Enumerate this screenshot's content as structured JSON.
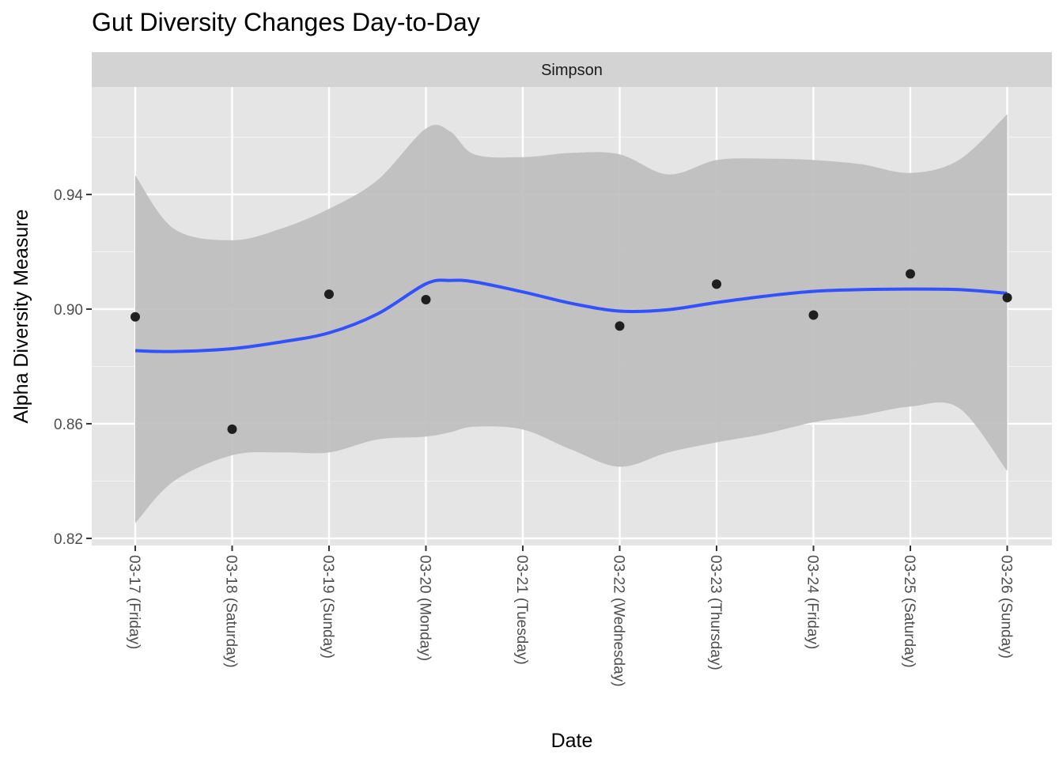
{
  "chart_data": {
    "type": "scatter",
    "title": "Gut Diversity Changes Day-to-Day",
    "facet_label": "Simpson",
    "xlabel": "Date",
    "ylabel": "Alpha Diversity Measure",
    "categories": [
      "03-17 (Friday)",
      "03-18 (Saturday)",
      "03-19 (Sunday)",
      "03-20 (Monday)",
      "03-21 (Tuesday)",
      "03-22 (Wednesday)",
      "03-23 (Thursday)",
      "03-24 (Friday)",
      "03-25 (Saturday)",
      "03-26 (Sunday)"
    ],
    "y_ticks": [
      "0.82",
      "0.86",
      "0.90",
      "0.94"
    ],
    "ylim": [
      0.8175,
      0.9775
    ],
    "grid": true,
    "colors": {
      "panel": "#e5e5e5",
      "strip": "#d3d3d3",
      "grid": "#ffffff",
      "points": "#1f1f1f",
      "smooth_line": "#3352ff",
      "confidence_band": "#bdbdbd"
    },
    "series": [
      {
        "kind": "points",
        "x": [
          "03-17 (Friday)",
          "03-18 (Saturday)",
          "03-19 (Sunday)",
          "03-20 (Monday)",
          "03-22 (Wednesday)",
          "03-23 (Thursday)",
          "03-24 (Friday)",
          "03-25 (Saturday)",
          "03-26 (Sunday)"
        ],
        "values": [
          0.8973,
          0.8581,
          0.9052,
          0.9033,
          0.8941,
          0.9087,
          0.8979,
          0.9123,
          0.904
        ]
      },
      {
        "kind": "smooth",
        "x": [
          "03-17 (Friday)",
          "03-17 (Friday)",
          "03-18 (Saturday)",
          "03-18 (Saturday)",
          "03-19 (Sunday)",
          "03-19 (Sunday)",
          "03-20 (Monday)",
          "03-20 (Monday)",
          "03-20 (Monday)",
          "03-21 (Tuesday)",
          "03-21 (Tuesday)",
          "03-22 (Wednesday)",
          "03-22 (Wednesday)",
          "03-23 (Thursday)",
          "03-23 (Thursday)",
          "03-24 (Friday)",
          "03-24 (Friday)",
          "03-25 (Saturday)",
          "03-25 (Saturday)",
          "03-26 (Sunday)"
        ],
        "x_frac": [
          0.0,
          0.4,
          0.0,
          0.5,
          0.0,
          0.5,
          0.0,
          0.25,
          0.5,
          0.0,
          0.5,
          0.0,
          0.5,
          0.0,
          0.5,
          0.0,
          0.5,
          0.0,
          0.5,
          0.0
        ],
        "values": [
          0.8855,
          0.8852,
          0.8862,
          0.8885,
          0.8917,
          0.8983,
          0.9088,
          0.91,
          0.9095,
          0.906,
          0.902,
          0.8993,
          0.8998,
          0.9023,
          0.9045,
          0.9062,
          0.9068,
          0.907,
          0.9068,
          0.9055
        ],
        "lower": [
          0.8253,
          0.84,
          0.849,
          0.85,
          0.85,
          0.8545,
          0.8555,
          0.857,
          0.859,
          0.858,
          0.851,
          0.845,
          0.85,
          0.8535,
          0.8565,
          0.8605,
          0.863,
          0.866,
          0.8655,
          0.8435
        ],
        "upper": [
          0.9467,
          0.928,
          0.924,
          0.928,
          0.935,
          0.945,
          0.963,
          0.962,
          0.954,
          0.953,
          0.9545,
          0.954,
          0.947,
          0.952,
          0.9525,
          0.952,
          0.9505,
          0.9475,
          0.952,
          0.968
        ]
      }
    ]
  }
}
